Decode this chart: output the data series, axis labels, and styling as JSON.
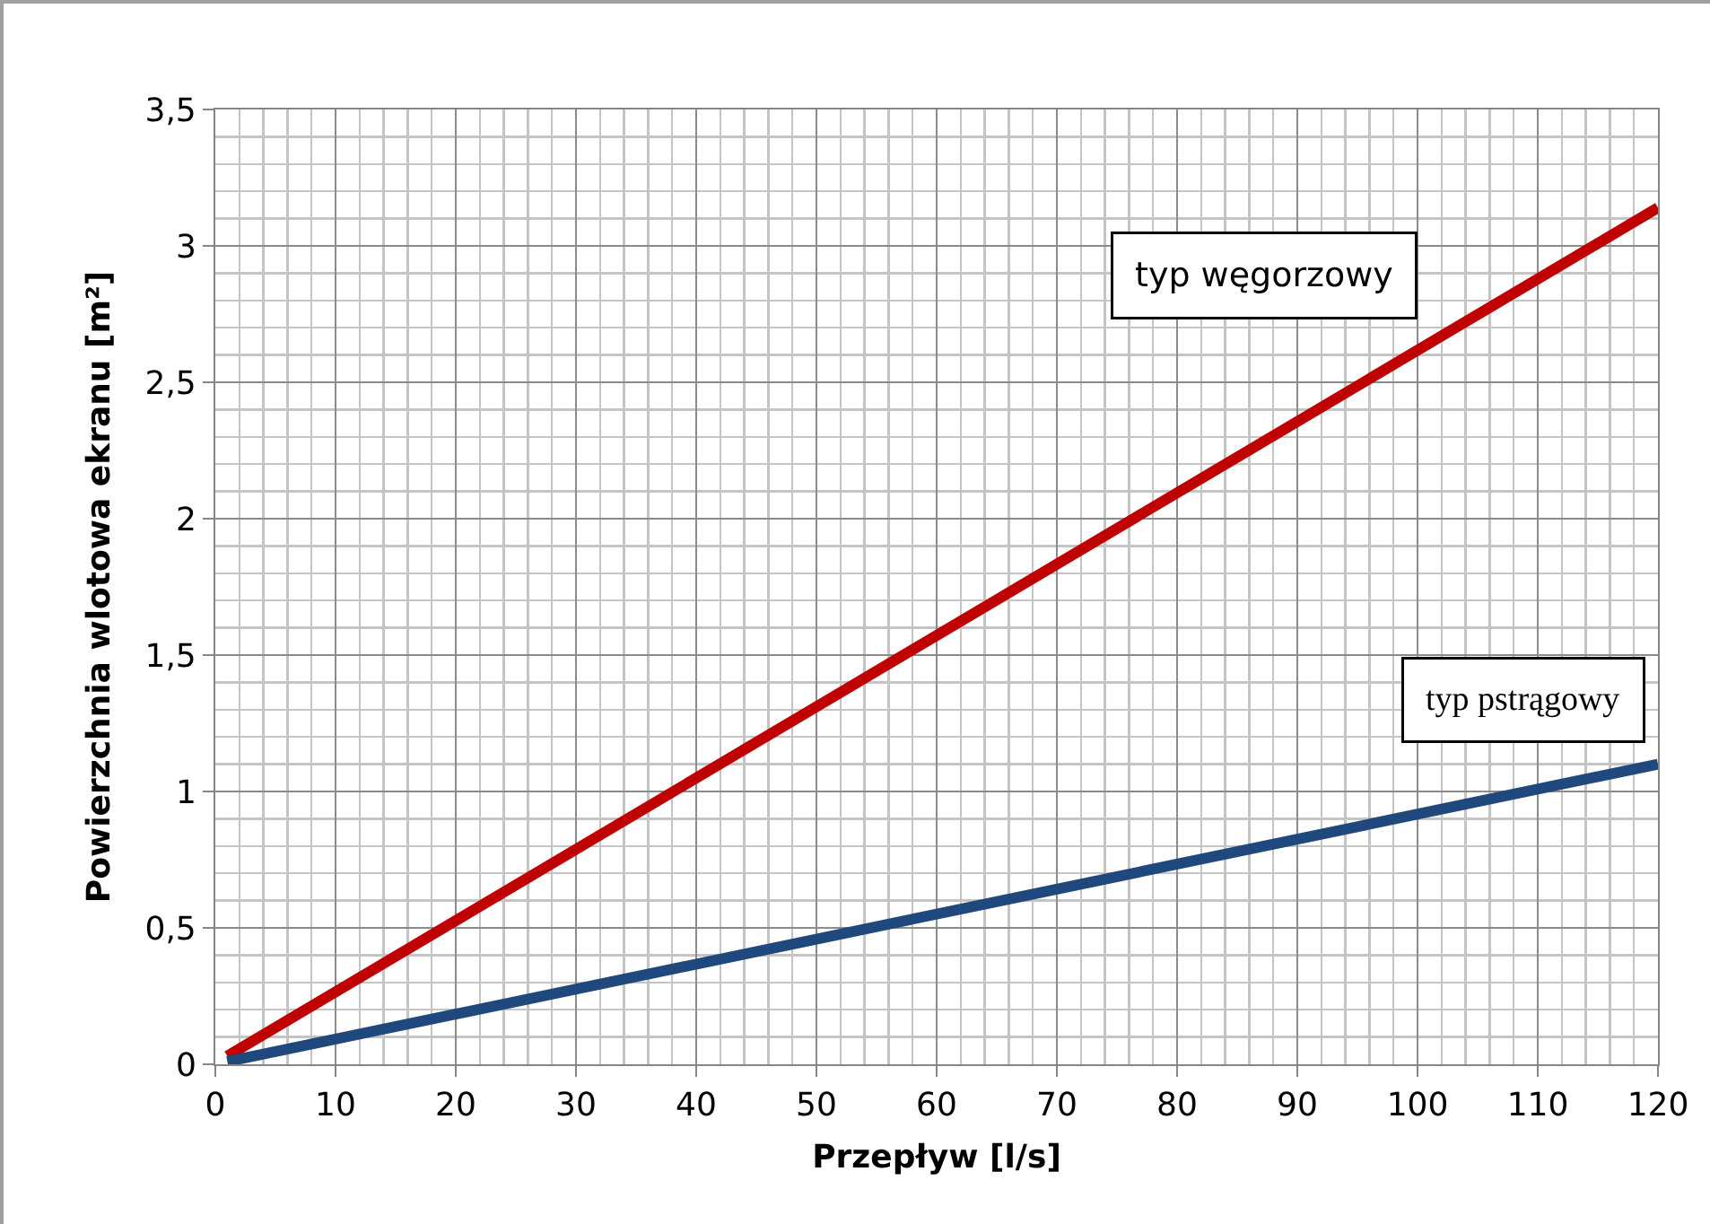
{
  "chart_data": {
    "type": "line",
    "xlabel": "Przepływ [l/s]",
    "ylabel": "Powierzchnia wlotowa ekranu [m²]",
    "x": [
      1,
      120
    ],
    "series": [
      {
        "name": "typ węgorzowy",
        "color": "#c00000",
        "values": [
          0.03,
          3.14
        ]
      },
      {
        "name": "typ pstrągowy",
        "color": "#1f497d",
        "values": [
          0.01,
          1.1
        ]
      }
    ],
    "xlim": [
      0,
      120
    ],
    "xticks": [
      0,
      10,
      20,
      30,
      40,
      50,
      60,
      70,
      80,
      90,
      100,
      110,
      120
    ],
    "ylim": [
      0,
      3.5
    ],
    "yticks": [
      0,
      {
        "value": 0.5,
        "label": "0,5"
      },
      1,
      {
        "value": 1.5,
        "label": "1,5"
      },
      2,
      {
        "value": 2.5,
        "label": "2,5"
      },
      3,
      {
        "value": 3.5,
        "label": "3,5"
      }
    ],
    "grid": true,
    "legend": false,
    "marker": "none",
    "line_style": "solid"
  }
}
